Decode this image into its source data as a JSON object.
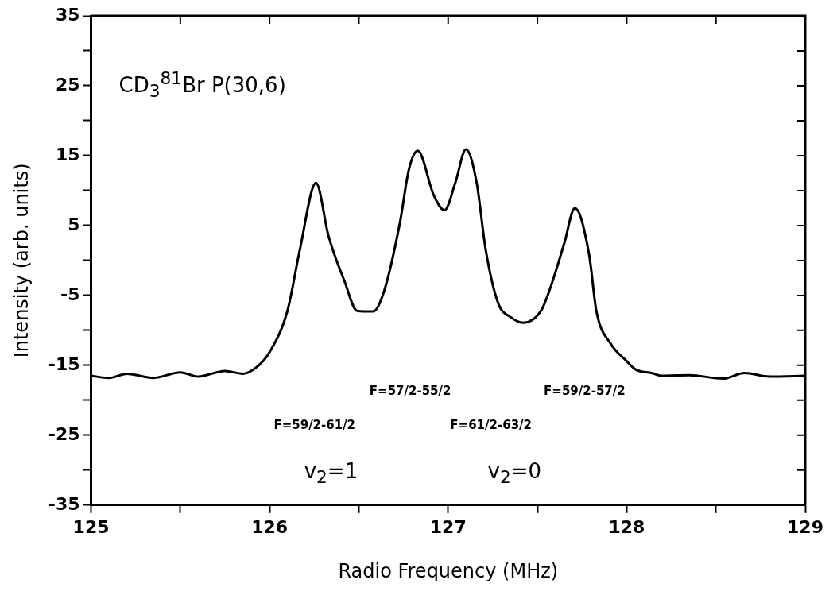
{
  "chart_data": {
    "type": "line",
    "xlabel": "Radio Frequency (MHz)",
    "ylabel": "Intensity (arb. units)",
    "x": [
      125,
      125.1,
      125.2,
      125.35,
      125.5,
      125.6,
      125.75,
      125.85,
      125.93,
      126.0,
      126.1,
      126.17,
      126.26,
      126.33,
      126.42,
      126.49,
      126.58,
      126.64,
      126.73,
      126.78,
      126.83,
      126.92,
      126.98,
      127.04,
      127.1,
      127.16,
      127.21,
      127.28,
      127.35,
      127.42,
      127.52,
      127.57,
      127.65,
      127.71,
      127.79,
      127.83,
      127.91,
      128.0,
      128.05,
      128.14,
      128.2,
      128.35,
      128.54,
      128.66,
      128.8,
      129
    ],
    "series": [
      {
        "color": "#000000",
        "values": [
          -16.5,
          -16.8,
          -16.2,
          -16.8,
          -16.0,
          -16.6,
          -15.8,
          -16.2,
          -15.2,
          -13.1,
          -7.2,
          1.6,
          11.1,
          3.5,
          -3.0,
          -7.2,
          -7.3,
          -4.5,
          5.4,
          13.0,
          15.7,
          9.3,
          7.2,
          11.1,
          15.9,
          11.1,
          1.6,
          -6.1,
          -8.1,
          -8.9,
          -7.2,
          -4.1,
          2.4,
          7.5,
          0.8,
          -7.2,
          -11.9,
          -14.4,
          -15.6,
          -16.1,
          -16.5,
          -16.4,
          -16.9,
          -16.1,
          -16.6,
          -16.5
        ]
      }
    ],
    "xlim": [
      125,
      129
    ],
    "xticks": [
      125,
      {
        "value": 125.5,
        "label": null
      },
      126,
      {
        "value": 126.5,
        "label": null
      },
      127,
      {
        "value": 127.5,
        "label": null
      },
      128,
      {
        "value": 128.5,
        "label": null
      },
      129
    ],
    "ylim": [
      -35,
      35
    ],
    "yticks": [
      -35,
      {
        "value": -30,
        "label": null
      },
      -25,
      {
        "value": -20,
        "label": null
      },
      -15,
      {
        "value": -10,
        "label": null
      },
      -5,
      {
        "value": 0,
        "label": null
      },
      5,
      {
        "value": 10,
        "label": null
      },
      15,
      {
        "value": 20,
        "label": null
      },
      25,
      {
        "value": 30,
        "label": null
      },
      35
    ],
    "grid": false,
    "legend": false,
    "marker": "none",
    "line_style": "solid",
    "annotations": [
      "CD$_{3}$$^{81}$Br P(30,6)",
      "F=59/2-61/2",
      "F=57/2-55/2",
      "F=61/2-63/2",
      "F=59/2-57/2",
      "v$_{2}$=1",
      "v$_{2}$=0"
    ]
  }
}
